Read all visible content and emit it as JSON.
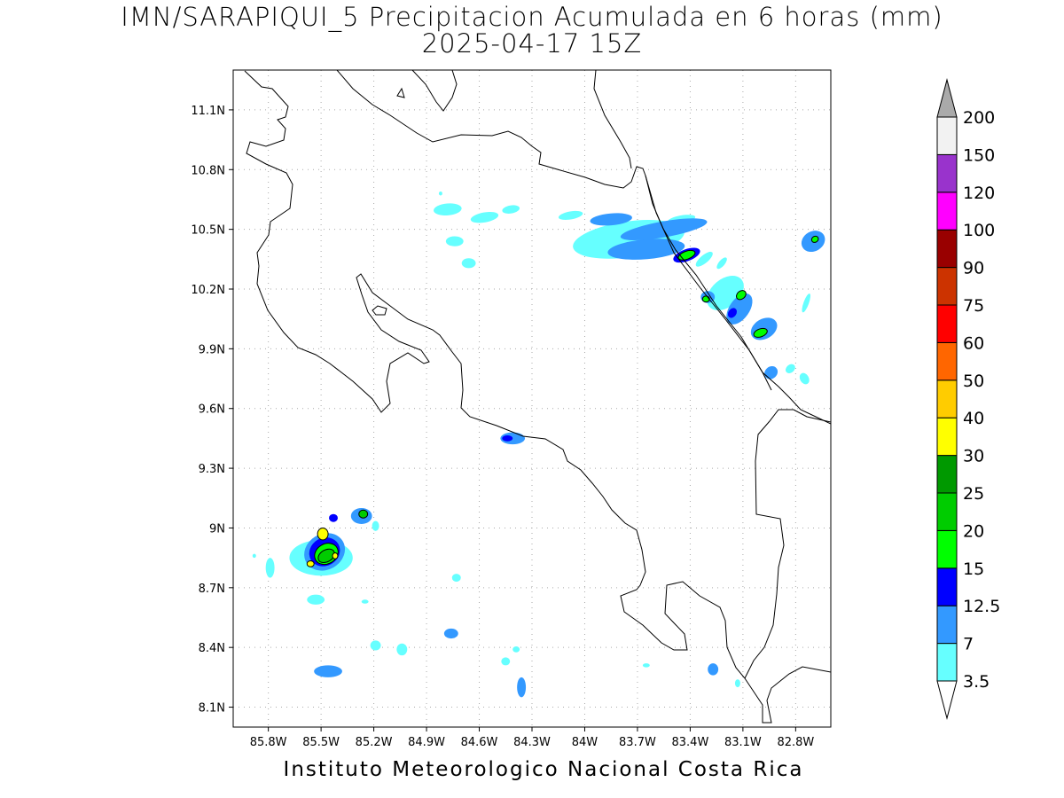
{
  "title_line1": "IMN/SARAPIQUI_5 Precipitacion Acumulada en 6 horas (mm)",
  "title_line2": "2025-04-17 15Z",
  "footer": "Instituto Meteorologico Nacional Costa Rica",
  "map": {
    "lon_range": [
      -86.0,
      -82.6
    ],
    "lat_range": [
      8.0,
      11.3
    ],
    "lon_ticks": [
      {
        "value": -85.8,
        "label": "85.8W"
      },
      {
        "value": -85.5,
        "label": "85.5W"
      },
      {
        "value": -85.2,
        "label": "85.2W"
      },
      {
        "value": -84.9,
        "label": "84.9W"
      },
      {
        "value": -84.6,
        "label": "84.6W"
      },
      {
        "value": -84.3,
        "label": "84.3W"
      },
      {
        "value": -84.0,
        "label": "84W"
      },
      {
        "value": -83.7,
        "label": "83.7W"
      },
      {
        "value": -83.4,
        "label": "83.4W"
      },
      {
        "value": -83.1,
        "label": "83.1W"
      },
      {
        "value": -82.8,
        "label": "82.8W"
      }
    ],
    "lat_ticks": [
      {
        "value": 8.1,
        "label": "8.1N"
      },
      {
        "value": 8.4,
        "label": "8.4N"
      },
      {
        "value": 8.7,
        "label": "8.7N"
      },
      {
        "value": 9.0,
        "label": "9N"
      },
      {
        "value": 9.3,
        "label": "9.3N"
      },
      {
        "value": 9.6,
        "label": "9.6N"
      },
      {
        "value": 9.9,
        "label": "9.9N"
      },
      {
        "value": 10.2,
        "label": "10.2N"
      },
      {
        "value": 10.5,
        "label": "10.5N"
      },
      {
        "value": 10.8,
        "label": "10.8N"
      },
      {
        "value": 11.1,
        "label": "11.1N"
      }
    ],
    "grid": true
  },
  "colorbar": {
    "levels": [
      "3.5",
      "7",
      "12.5",
      "15",
      "20",
      "25",
      "30",
      "40",
      "50",
      "60",
      "75",
      "90",
      "100",
      "120",
      "150",
      "200"
    ],
    "colors": [
      "#66ffff",
      "#3399ff",
      "#0000ff",
      "#00ff00",
      "#00cc00",
      "#009900",
      "#ffff00",
      "#ffcc00",
      "#ff6600",
      "#ff0000",
      "#cc3300",
      "#990000",
      "#ff00ff",
      "#9933cc",
      "#f2f2f2"
    ],
    "over_color": "#aaaaaa",
    "under_color": "#ffffff"
  },
  "precip_cells": [
    {
      "lon": -83.75,
      "lat": 10.45,
      "rx": 0.32,
      "ry": 0.09,
      "rot": -8,
      "level": 0
    },
    {
      "lon": -83.55,
      "lat": 10.5,
      "rx": 0.25,
      "ry": 0.04,
      "rot": -10,
      "level": 1
    },
    {
      "lon": -83.85,
      "lat": 10.55,
      "rx": 0.12,
      "ry": 0.03,
      "rot": -5,
      "level": 1
    },
    {
      "lon": -83.65,
      "lat": 10.4,
      "rx": 0.22,
      "ry": 0.05,
      "rot": -5,
      "level": 1
    },
    {
      "lon": -83.42,
      "lat": 10.37,
      "rx": 0.08,
      "ry": 0.03,
      "rot": -20,
      "level": 2
    },
    {
      "lon": -83.42,
      "lat": 10.37,
      "rx": 0.05,
      "ry": 0.02,
      "rot": -20,
      "level": 3
    },
    {
      "lon": -83.2,
      "lat": 10.18,
      "rx": 0.12,
      "ry": 0.07,
      "rot": -40,
      "level": 0
    },
    {
      "lon": -83.3,
      "lat": 10.16,
      "rx": 0.04,
      "ry": 0.03,
      "rot": 0,
      "level": 1
    },
    {
      "lon": -83.31,
      "lat": 10.15,
      "rx": 0.02,
      "ry": 0.015,
      "rot": 0,
      "level": 3
    },
    {
      "lon": -83.12,
      "lat": 10.1,
      "rx": 0.1,
      "ry": 0.05,
      "rot": -55,
      "level": 1
    },
    {
      "lon": -83.11,
      "lat": 10.17,
      "rx": 0.03,
      "ry": 0.02,
      "rot": -40,
      "level": 3
    },
    {
      "lon": -83.16,
      "lat": 10.08,
      "rx": 0.03,
      "ry": 0.02,
      "rot": -55,
      "level": 2
    },
    {
      "lon": -82.98,
      "lat": 10.0,
      "rx": 0.08,
      "ry": 0.05,
      "rot": -30,
      "level": 1
    },
    {
      "lon": -83.0,
      "lat": 9.98,
      "rx": 0.04,
      "ry": 0.02,
      "rot": -20,
      "level": 3
    },
    {
      "lon": -82.94,
      "lat": 9.78,
      "rx": 0.04,
      "ry": 0.03,
      "rot": -40,
      "level": 1
    },
    {
      "lon": -82.7,
      "lat": 10.44,
      "rx": 0.07,
      "ry": 0.05,
      "rot": -30,
      "level": 1
    },
    {
      "lon": -82.69,
      "lat": 10.45,
      "rx": 0.02,
      "ry": 0.015,
      "rot": -30,
      "level": 3
    },
    {
      "lon": -84.41,
      "lat": 9.45,
      "rx": 0.07,
      "ry": 0.03,
      "rot": 0,
      "level": 1
    },
    {
      "lon": -84.44,
      "lat": 9.45,
      "rx": 0.03,
      "ry": 0.015,
      "rot": 0,
      "level": 2
    },
    {
      "lon": -85.5,
      "lat": 8.85,
      "rx": 0.18,
      "ry": 0.09,
      "rot": 0,
      "level": 0
    },
    {
      "lon": -85.48,
      "lat": 8.88,
      "rx": 0.12,
      "ry": 0.09,
      "rot": -30,
      "level": 1
    },
    {
      "lon": -85.48,
      "lat": 8.88,
      "rx": 0.09,
      "ry": 0.07,
      "rot": -30,
      "level": 2
    },
    {
      "lon": -85.47,
      "lat": 8.87,
      "rx": 0.07,
      "ry": 0.05,
      "rot": -30,
      "level": 3
    },
    {
      "lon": -85.47,
      "lat": 8.86,
      "rx": 0.05,
      "ry": 0.03,
      "rot": -30,
      "level": 4
    },
    {
      "lon": -85.49,
      "lat": 8.97,
      "rx": 0.03,
      "ry": 0.03,
      "rot": 0,
      "level": 6
    },
    {
      "lon": -85.56,
      "lat": 8.82,
      "rx": 0.02,
      "ry": 0.015,
      "rot": 0,
      "level": 6
    },
    {
      "lon": -85.42,
      "lat": 8.86,
      "rx": 0.015,
      "ry": 0.015,
      "rot": 0,
      "level": 6
    },
    {
      "lon": -85.27,
      "lat": 9.06,
      "rx": 0.06,
      "ry": 0.04,
      "rot": 0,
      "level": 1
    },
    {
      "lon": -85.26,
      "lat": 9.07,
      "rx": 0.025,
      "ry": 0.02,
      "rot": 0,
      "level": 4
    },
    {
      "lon": -85.43,
      "lat": 9.05,
      "rx": 0.025,
      "ry": 0.02,
      "rot": 0,
      "level": 2
    },
    {
      "lon": -85.46,
      "lat": 8.28,
      "rx": 0.08,
      "ry": 0.03,
      "rot": 0,
      "level": 1
    },
    {
      "lon": -84.76,
      "lat": 8.47,
      "rx": 0.04,
      "ry": 0.025,
      "rot": 0,
      "level": 1
    },
    {
      "lon": -84.36,
      "lat": 8.2,
      "rx": 0.025,
      "ry": 0.05,
      "rot": 0,
      "level": 1
    },
    {
      "lon": -83.27,
      "lat": 8.29,
      "rx": 0.03,
      "ry": 0.03,
      "rot": 0,
      "level": 1
    }
  ],
  "light_cells": [
    {
      "lon": -84.78,
      "lat": 10.6,
      "rx": 0.08,
      "ry": 0.03,
      "rot": -5
    },
    {
      "lon": -84.57,
      "lat": 10.56,
      "rx": 0.08,
      "ry": 0.025,
      "rot": -10
    },
    {
      "lon": -84.42,
      "lat": 10.6,
      "rx": 0.05,
      "ry": 0.02,
      "rot": -10
    },
    {
      "lon": -84.74,
      "lat": 10.44,
      "rx": 0.05,
      "ry": 0.025,
      "rot": 0
    },
    {
      "lon": -84.66,
      "lat": 10.33,
      "rx": 0.04,
      "ry": 0.025,
      "rot": 0
    },
    {
      "lon": -84.08,
      "lat": 10.57,
      "rx": 0.07,
      "ry": 0.02,
      "rot": -10
    },
    {
      "lon": -83.45,
      "lat": 10.55,
      "rx": 0.08,
      "ry": 0.02,
      "rot": -10
    },
    {
      "lon": -83.32,
      "lat": 10.35,
      "rx": 0.06,
      "ry": 0.02,
      "rot": -40
    },
    {
      "lon": -83.22,
      "lat": 10.33,
      "rx": 0.04,
      "ry": 0.015,
      "rot": -50
    },
    {
      "lon": -82.83,
      "lat": 9.8,
      "rx": 0.03,
      "ry": 0.02,
      "rot": -40
    },
    {
      "lon": -82.75,
      "lat": 9.75,
      "rx": 0.025,
      "ry": 0.03,
      "rot": -30
    },
    {
      "lon": -82.74,
      "lat": 10.13,
      "rx": 0.015,
      "ry": 0.05,
      "rot": 20
    },
    {
      "lon": -85.79,
      "lat": 8.8,
      "rx": 0.025,
      "ry": 0.05,
      "rot": 0
    },
    {
      "lon": -85.88,
      "lat": 8.86,
      "rx": 0.01,
      "ry": 0.01,
      "rot": 0
    },
    {
      "lon": -85.53,
      "lat": 8.64,
      "rx": 0.05,
      "ry": 0.025,
      "rot": 0
    },
    {
      "lon": -85.25,
      "lat": 8.63,
      "rx": 0.02,
      "ry": 0.01,
      "rot": 0
    },
    {
      "lon": -85.19,
      "lat": 8.41,
      "rx": 0.03,
      "ry": 0.025,
      "rot": 0
    },
    {
      "lon": -85.04,
      "lat": 8.39,
      "rx": 0.03,
      "ry": 0.03,
      "rot": 0
    },
    {
      "lon": -84.45,
      "lat": 8.33,
      "rx": 0.025,
      "ry": 0.02,
      "rot": 0
    },
    {
      "lon": -84.39,
      "lat": 8.39,
      "rx": 0.02,
      "ry": 0.015,
      "rot": 0
    },
    {
      "lon": -84.73,
      "lat": 8.75,
      "rx": 0.025,
      "ry": 0.02,
      "rot": 0
    },
    {
      "lon": -85.19,
      "lat": 9.01,
      "rx": 0.02,
      "ry": 0.025,
      "rot": 0
    },
    {
      "lon": -83.13,
      "lat": 8.22,
      "rx": 0.015,
      "ry": 0.02,
      "rot": 0
    },
    {
      "lon": -83.65,
      "lat": 8.31,
      "rx": 0.02,
      "ry": 0.01,
      "rot": 0
    },
    {
      "lon": -84.82,
      "lat": 10.68,
      "rx": 0.01,
      "ry": 0.01,
      "rot": 0
    }
  ]
}
